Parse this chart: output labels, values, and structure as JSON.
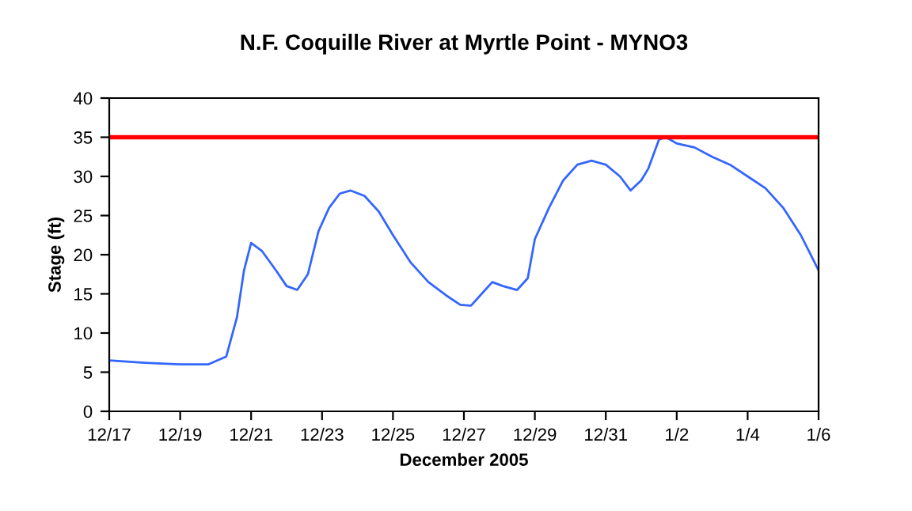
{
  "chart_data": {
    "type": "line",
    "title": "N.F. Coquille River at Myrtle Point - MYNO3",
    "xlabel": "December 2005",
    "ylabel": "Stage (ft)",
    "series": [
      {
        "color": "#3366ff",
        "x": [
          "2005-12-17",
          "2005-12-18",
          "2005-12-19",
          "2005-12-19T19:12",
          "2005-12-20T07:12",
          "2005-12-20T14:24",
          "2005-12-20T19:12",
          "2005-12-21",
          "2005-12-21T07:12",
          "2005-12-21T16:48",
          "2005-12-22",
          "2005-12-22T07:12",
          "2005-12-22T14:24",
          "2005-12-22T21:36",
          "2005-12-23T04:48",
          "2005-12-23T12:00",
          "2005-12-23T19:12",
          "2005-12-24T04:48",
          "2005-12-24T14:24",
          "2005-12-25",
          "2005-12-25T12:00",
          "2005-12-26",
          "2005-12-26T12:00",
          "2005-12-26T21:36",
          "2005-12-27T04:48",
          "2005-12-27T12:00",
          "2005-12-27T19:12",
          "2005-12-28T02:24",
          "2005-12-28T12:00",
          "2005-12-28T19:12",
          "2005-12-29",
          "2005-12-29T09:36",
          "2005-12-29T19:12",
          "2005-12-30T04:48",
          "2005-12-30T14:24",
          "2005-12-31",
          "2005-12-31T09:36",
          "2005-12-31T16:48",
          "2006-01-01",
          "2006-01-01T04:48",
          "2006-01-01T12:00",
          "2006-01-01T16:48",
          "2006-01-02",
          "2006-01-02T12:00",
          "2006-01-03",
          "2006-01-03T12:00",
          "2006-01-04",
          "2006-01-04T12:00",
          "2006-01-05",
          "2006-01-05T12:00",
          "2006-01-06"
        ],
        "values": [
          6.5,
          6.2,
          6.0,
          6.0,
          7,
          12,
          18,
          21.5,
          20.5,
          18,
          16,
          15.5,
          17.5,
          23,
          26,
          27.8,
          28.2,
          27.5,
          25.5,
          22.5,
          19,
          16.5,
          14.8,
          13.6,
          13.5,
          15,
          16.5,
          16,
          15.5,
          17,
          22,
          26,
          29.5,
          31.5,
          32,
          31.5,
          30,
          28.2,
          29.5,
          31,
          34.7,
          35,
          34.2,
          33.7,
          32.5,
          31.5,
          30,
          28.5,
          26,
          22.5,
          18
        ]
      }
    ],
    "xlim": [
      "2005-12-17",
      "2006-01-06"
    ],
    "xticks": [
      {
        "value": "2005-12-17",
        "label": "12/17"
      },
      {
        "value": "2005-12-19",
        "label": "12/19"
      },
      {
        "value": "2005-12-21",
        "label": "12/21"
      },
      {
        "value": "2005-12-23",
        "label": "12/23"
      },
      {
        "value": "2005-12-25",
        "label": "12/25"
      },
      {
        "value": "2005-12-27",
        "label": "12/27"
      },
      {
        "value": "2005-12-29",
        "label": "12/29"
      },
      {
        "value": "2005-12-31",
        "label": "12/31"
      },
      {
        "value": "2006-01-02",
        "label": "1/2"
      },
      {
        "value": "2006-01-04",
        "label": "1/4"
      },
      {
        "value": "2006-01-06",
        "label": "1/6"
      }
    ],
    "ylim": [
      0,
      40
    ],
    "yticks": [
      0,
      5,
      10,
      15,
      20,
      25,
      30,
      35,
      40
    ],
    "ref_lines": [
      {
        "axis": "y",
        "value": 35,
        "color": "#ff0000"
      }
    ],
    "marker": "none",
    "line_style": "solid"
  }
}
